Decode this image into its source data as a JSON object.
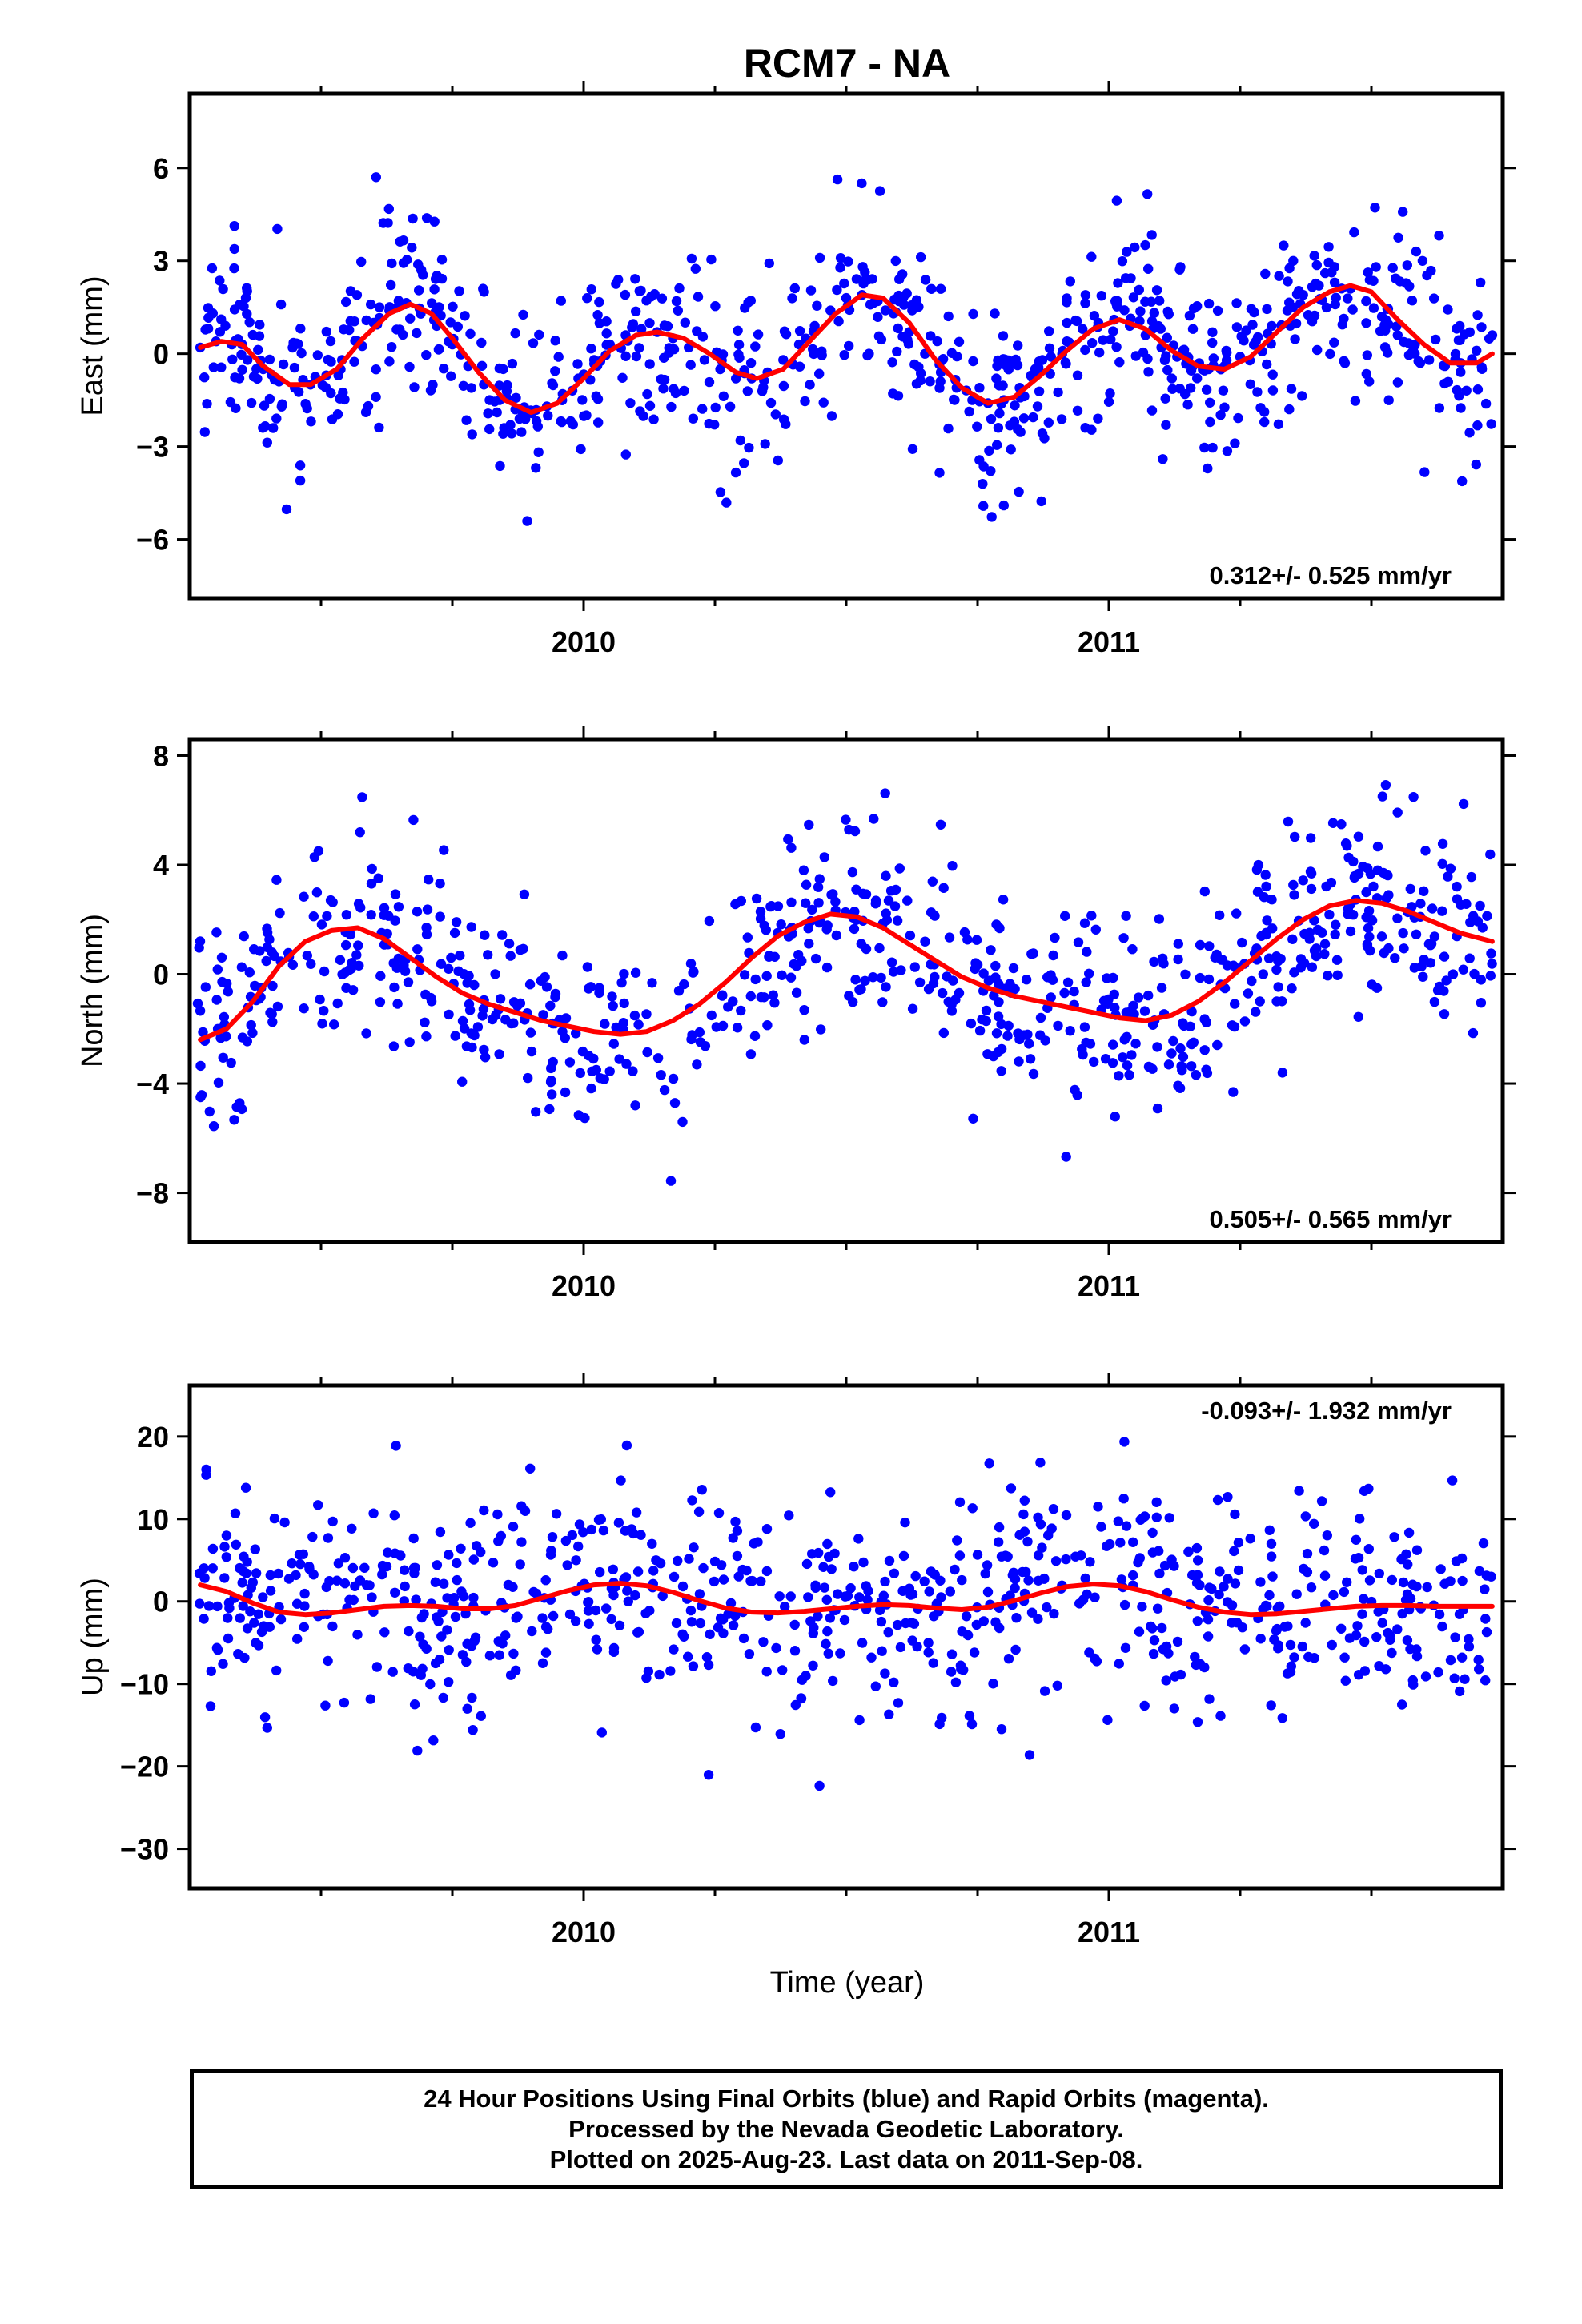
{
  "chart_data": {
    "type": "scatter",
    "title": "RCM7 - NA",
    "xlabel": "Time (year)",
    "xlim": [
      2009.25,
      2011.75
    ],
    "x_major_ticks": [
      "2010",
      "2011"
    ],
    "grid": false,
    "point_color": "#0000ff",
    "fit_color": "#ff0000",
    "panels": [
      {
        "name": "east",
        "ylabel": "East (mm)",
        "ylim": [
          -7.9,
          8.4
        ],
        "yticks": [
          -6,
          -3,
          0,
          3,
          6
        ],
        "rate": "0.312+/- 0.525 mm/yr",
        "rate_position": "bottom-right",
        "series": [
          {
            "values": [
              [
                2009.27,
                0.2
              ],
              [
                2009.3,
                0.4
              ],
              [
                2009.33,
                0.3
              ],
              [
                2009.36,
                -0.2
              ],
              [
                2009.39,
                -0.5
              ],
              [
                2009.42,
                -0.9
              ],
              [
                2009.45,
                -1.1
              ],
              [
                2009.48,
                -1.0
              ],
              [
                2009.51,
                -0.7
              ],
              [
                2009.54,
                -0.2
              ],
              [
                2009.57,
                0.4
              ],
              [
                2009.6,
                1.0
              ],
              [
                2009.63,
                1.4
              ],
              [
                2009.66,
                1.6
              ],
              [
                2009.69,
                1.4
              ],
              [
                2009.72,
                0.9
              ],
              [
                2009.75,
                0.3
              ],
              [
                2009.78,
                -0.4
              ],
              [
                2009.81,
                -1.0
              ],
              [
                2009.84,
                -1.5
              ],
              [
                2009.87,
                -1.8
              ],
              [
                2009.9,
                -1.9
              ],
              [
                2009.93,
                -1.7
              ],
              [
                2009.96,
                -1.3
              ],
              [
                2009.99,
                -0.8
              ],
              [
                2010.02,
                -0.2
              ],
              [
                2010.05,
                0.3
              ],
              [
                2010.08,
                0.6
              ],
              [
                2010.11,
                0.8
              ],
              [
                2010.14,
                0.7
              ],
              [
                2010.17,
                0.5
              ],
              [
                2010.2,
                0.2
              ],
              [
                2010.23,
                -0.2
              ],
              [
                2010.26,
                -0.5
              ],
              [
                2010.29,
                -0.8
              ],
              [
                2010.32,
                -0.8
              ],
              [
                2010.35,
                -0.6
              ],
              [
                2010.38,
                -0.2
              ],
              [
                2010.41,
                0.3
              ],
              [
                2010.44,
                0.9
              ],
              [
                2010.47,
                1.4
              ],
              [
                2010.5,
                1.8
              ],
              [
                2010.53,
                1.9
              ],
              [
                2010.56,
                1.7
              ],
              [
                2010.59,
                1.3
              ],
              [
                2010.62,
                0.7
              ],
              [
                2010.65,
                0.0
              ],
              [
                2010.68,
                -0.6
              ],
              [
                2010.71,
                -1.1
              ],
              [
                2010.74,
                -1.5
              ],
              [
                2010.77,
                -1.6
              ],
              [
                2010.8,
                -1.5
              ],
              [
                2010.83,
                -1.1
              ],
              [
                2010.86,
                -0.6
              ],
              [
                2010.89,
                -0.1
              ],
              [
                2010.92,
                0.4
              ],
              [
                2010.95,
                0.8
              ],
              [
                2010.98,
                1.0
              ],
              [
                2011.01,
                1.1
              ],
              [
                2011.04,
                0.9
              ],
              [
                2011.07,
                0.6
              ],
              [
                2011.1,
                0.2
              ],
              [
                2011.13,
                -0.1
              ],
              [
                2011.16,
                -0.4
              ],
              [
                2011.19,
                -0.5
              ],
              [
                2011.22,
                -0.4
              ],
              [
                2011.25,
                -0.1
              ],
              [
                2011.28,
                0.4
              ],
              [
                2011.31,
                0.9
              ],
              [
                2011.34,
                1.4
              ],
              [
                2011.37,
                1.9
              ],
              [
                2011.4,
                2.2
              ],
              [
                2011.43,
                2.3
              ],
              [
                2011.46,
                2.1
              ],
              [
                2011.49,
                1.7
              ],
              [
                2011.52,
                1.2
              ],
              [
                2011.55,
                0.6
              ],
              [
                2011.58,
                0.2
              ],
              [
                2011.61,
                -0.2
              ],
              [
                2011.64,
                -0.4
              ],
              [
                2011.67,
                -0.3
              ],
              [
                2011.7,
                0.1
              ],
              [
                2011.73,
                0.6
              ]
            ]
          }
        ],
        "fit": [
          [
            2009.27,
            0.2
          ],
          [
            2009.31,
            0.4
          ],
          [
            2009.35,
            0.3
          ],
          [
            2009.39,
            -0.4
          ],
          [
            2009.44,
            -1.0
          ],
          [
            2009.48,
            -1.0
          ],
          [
            2009.53,
            -0.5
          ],
          [
            2009.58,
            0.5
          ],
          [
            2009.63,
            1.3
          ],
          [
            2009.67,
            1.6
          ],
          [
            2009.71,
            1.3
          ],
          [
            2009.75,
            0.5
          ],
          [
            2009.8,
            -0.6
          ],
          [
            2009.85,
            -1.5
          ],
          [
            2009.9,
            -1.9
          ],
          [
            2009.95,
            -1.6
          ],
          [
            2010.0,
            -0.8
          ],
          [
            2010.05,
            0.1
          ],
          [
            2010.1,
            0.6
          ],
          [
            2010.14,
            0.7
          ],
          [
            2010.19,
            0.5
          ],
          [
            2010.24,
            0.0
          ],
          [
            2010.29,
            -0.6
          ],
          [
            2010.33,
            -0.8
          ],
          [
            2010.38,
            -0.5
          ],
          [
            2010.43,
            0.4
          ],
          [
            2010.48,
            1.3
          ],
          [
            2010.53,
            1.9
          ],
          [
            2010.57,
            1.8
          ],
          [
            2010.62,
            1.0
          ],
          [
            2010.67,
            -0.2
          ],
          [
            2010.72,
            -1.1
          ],
          [
            2010.77,
            -1.6
          ],
          [
            2010.82,
            -1.4
          ],
          [
            2010.87,
            -0.7
          ],
          [
            2010.92,
            0.1
          ],
          [
            2010.97,
            0.8
          ],
          [
            2011.02,
            1.1
          ],
          [
            2011.07,
            0.8
          ],
          [
            2011.12,
            0.1
          ],
          [
            2011.17,
            -0.4
          ],
          [
            2011.22,
            -0.5
          ],
          [
            2011.27,
            -0.1
          ],
          [
            2011.32,
            0.7
          ],
          [
            2011.37,
            1.5
          ],
          [
            2011.42,
            2.0
          ],
          [
            2011.46,
            2.2
          ],
          [
            2011.5,
            2.0
          ],
          [
            2011.55,
            1.1
          ],
          [
            2011.6,
            0.3
          ],
          [
            2011.65,
            -0.3
          ],
          [
            2011.7,
            -0.3
          ],
          [
            2011.73,
            0.0
          ]
        ]
      },
      {
        "name": "north",
        "ylabel": "North (mm)",
        "ylim": [
          -9.8,
          8.6
        ],
        "yticks": [
          -8,
          -4,
          0,
          4,
          8
        ],
        "rate": "0.505+/- 0.565 mm/yr",
        "rate_position": "bottom-right",
        "fit": [
          [
            2009.27,
            -2.4
          ],
          [
            2009.32,
            -2.0
          ],
          [
            2009.37,
            -1.0
          ],
          [
            2009.42,
            0.3
          ],
          [
            2009.47,
            1.2
          ],
          [
            2009.52,
            1.6
          ],
          [
            2009.57,
            1.7
          ],
          [
            2009.62,
            1.3
          ],
          [
            2009.67,
            0.6
          ],
          [
            2009.72,
            -0.1
          ],
          [
            2009.77,
            -0.7
          ],
          [
            2009.82,
            -1.1
          ],
          [
            2009.87,
            -1.4
          ],
          [
            2009.92,
            -1.7
          ],
          [
            2009.97,
            -1.9
          ],
          [
            2010.02,
            -2.1
          ],
          [
            2010.07,
            -2.2
          ],
          [
            2010.12,
            -2.1
          ],
          [
            2010.17,
            -1.7
          ],
          [
            2010.22,
            -1.1
          ],
          [
            2010.27,
            -0.3
          ],
          [
            2010.32,
            0.6
          ],
          [
            2010.37,
            1.4
          ],
          [
            2010.42,
            1.9
          ],
          [
            2010.47,
            2.2
          ],
          [
            2010.52,
            2.1
          ],
          [
            2010.57,
            1.7
          ],
          [
            2010.62,
            1.1
          ],
          [
            2010.67,
            0.5
          ],
          [
            2010.72,
            -0.1
          ],
          [
            2010.77,
            -0.5
          ],
          [
            2010.82,
            -0.8
          ],
          [
            2010.87,
            -1.0
          ],
          [
            2010.92,
            -1.2
          ],
          [
            2010.97,
            -1.4
          ],
          [
            2011.02,
            -1.6
          ],
          [
            2011.07,
            -1.7
          ],
          [
            2011.12,
            -1.5
          ],
          [
            2011.17,
            -1.0
          ],
          [
            2011.22,
            -0.3
          ],
          [
            2011.27,
            0.5
          ],
          [
            2011.32,
            1.3
          ],
          [
            2011.37,
            2.0
          ],
          [
            2011.42,
            2.5
          ],
          [
            2011.47,
            2.7
          ],
          [
            2011.52,
            2.6
          ],
          [
            2011.57,
            2.3
          ],
          [
            2011.62,
            1.9
          ],
          [
            2011.67,
            1.5
          ],
          [
            2011.73,
            1.2
          ]
        ]
      },
      {
        "name": "up",
        "ylabel": "Up (mm)",
        "ylim": [
          -34.8,
          26.2
        ],
        "yticks": [
          -30,
          -20,
          -10,
          0,
          10,
          20
        ],
        "rate": "-0.093+/- 1.932 mm/yr",
        "rate_position": "top-right",
        "fit": [
          [
            2009.27,
            2.0
          ],
          [
            2009.32,
            1.2
          ],
          [
            2009.37,
            -0.2
          ],
          [
            2009.42,
            -1.3
          ],
          [
            2009.47,
            -1.6
          ],
          [
            2009.52,
            -1.4
          ],
          [
            2009.57,
            -1.0
          ],
          [
            2009.62,
            -0.6
          ],
          [
            2009.67,
            -0.5
          ],
          [
            2009.72,
            -0.6
          ],
          [
            2009.77,
            -0.9
          ],
          [
            2009.82,
            -0.9
          ],
          [
            2009.87,
            -0.5
          ],
          [
            2009.92,
            0.4
          ],
          [
            2009.97,
            1.3
          ],
          [
            2010.02,
            2.0
          ],
          [
            2010.07,
            2.2
          ],
          [
            2010.12,
            1.9
          ],
          [
            2010.17,
            1.1
          ],
          [
            2010.22,
            0.1
          ],
          [
            2010.27,
            -0.8
          ],
          [
            2010.32,
            -1.3
          ],
          [
            2010.37,
            -1.4
          ],
          [
            2010.42,
            -1.2
          ],
          [
            2010.47,
            -0.9
          ],
          [
            2010.52,
            -0.6
          ],
          [
            2010.57,
            -0.4
          ],
          [
            2010.62,
            -0.5
          ],
          [
            2010.67,
            -0.8
          ],
          [
            2010.72,
            -1.0
          ],
          [
            2010.77,
            -0.7
          ],
          [
            2010.82,
            0.1
          ],
          [
            2010.87,
            1.0
          ],
          [
            2010.92,
            1.8
          ],
          [
            2010.97,
            2.1
          ],
          [
            2011.02,
            1.9
          ],
          [
            2011.07,
            1.2
          ],
          [
            2011.12,
            0.2
          ],
          [
            2011.17,
            -0.7
          ],
          [
            2011.22,
            -1.3
          ],
          [
            2011.27,
            -1.6
          ],
          [
            2011.32,
            -1.5
          ],
          [
            2011.37,
            -1.2
          ],
          [
            2011.42,
            -0.9
          ],
          [
            2011.47,
            -0.6
          ],
          [
            2011.52,
            -0.5
          ],
          [
            2011.57,
            -0.5
          ],
          [
            2011.62,
            -0.6
          ],
          [
            2011.67,
            -0.6
          ],
          [
            2011.73,
            -0.6
          ]
        ]
      }
    ]
  },
  "footer": {
    "line1": "24 Hour Positions Using Final Orbits (blue) and Rapid Orbits (magenta).",
    "line2": "Processed by the Nevada Geodetic Laboratory.",
    "line3": "Plotted on 2025-Aug-23. Last data on 2011-Sep-08."
  }
}
